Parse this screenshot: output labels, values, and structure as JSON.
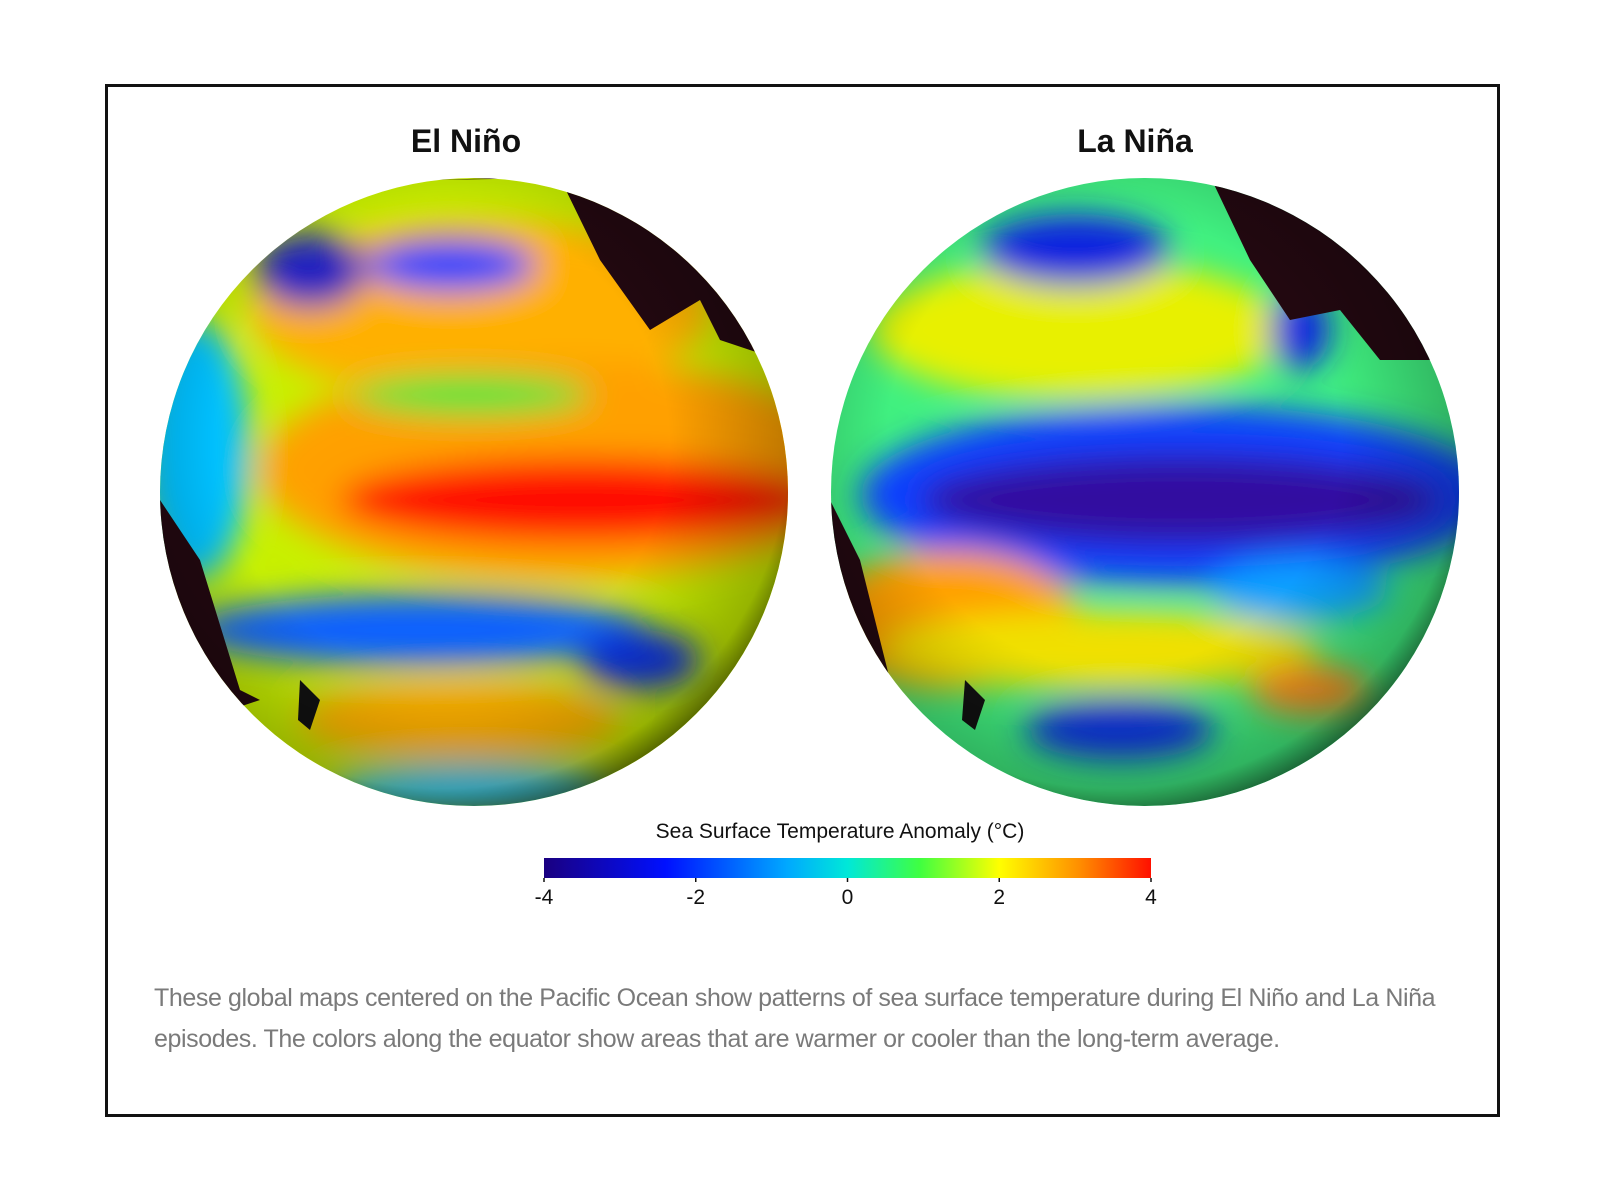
{
  "panels": [
    {
      "title": "El Niño"
    },
    {
      "title": "La Niña"
    }
  ],
  "colorbar": {
    "label": "Sea Surface Temperature Anomaly (°C)",
    "lim": [
      -4,
      4
    ],
    "ticks": [
      -4,
      -2,
      0,
      2,
      4
    ]
  },
  "caption": "These global maps centered on the Pacific Ocean show patterns of sea surface temperature during El Niño and La Niña episodes. The colors along the equator show areas that are warmer or cooler than the long-term average."
}
